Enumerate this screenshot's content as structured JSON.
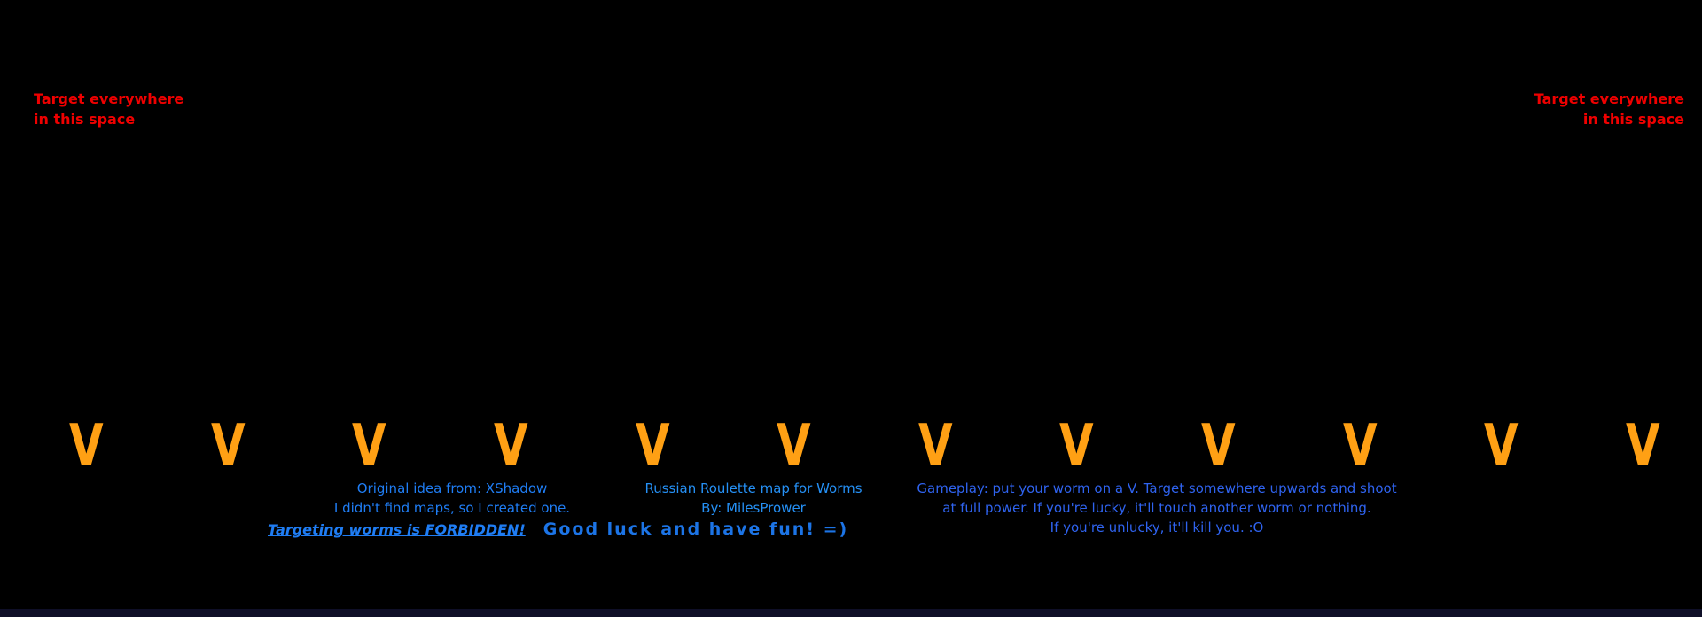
{
  "map": {
    "background_color": "#000000",
    "bottom_strip_color": "#0f0f28"
  },
  "colors": {
    "target_red": "#ef0000",
    "credits_blue": "#1f7df4",
    "map_info_blue": "#2590f5",
    "gameplay_blue": "#2f63ef",
    "marker_orange": "#ffa014"
  },
  "target_notes": {
    "left": {
      "line1": "Target everywhere",
      "line2": "in this space"
    },
    "right": {
      "line1": "Target everywhere",
      "line2": "in this space"
    }
  },
  "v_row": {
    "letter": "V",
    "count": 12
  },
  "credits": {
    "line1": "Original idea from: XShadow",
    "line2": "I didn't find maps, so I created one."
  },
  "warning": {
    "forbidden": "Targeting worms is FORBIDDEN!",
    "good_luck": "Good luck and have fun! =)"
  },
  "map_info": {
    "line1": "Russian Roulette map for Worms",
    "line2": "By: MilesPrower"
  },
  "gameplay": {
    "line1": "Gameplay: put your worm on a V. Target somewhere upwards and shoot",
    "line2": "at full power. If you're lucky, it'll touch another worm or nothing.",
    "line3": "If you're unlucky, it'll kill you. :O"
  }
}
